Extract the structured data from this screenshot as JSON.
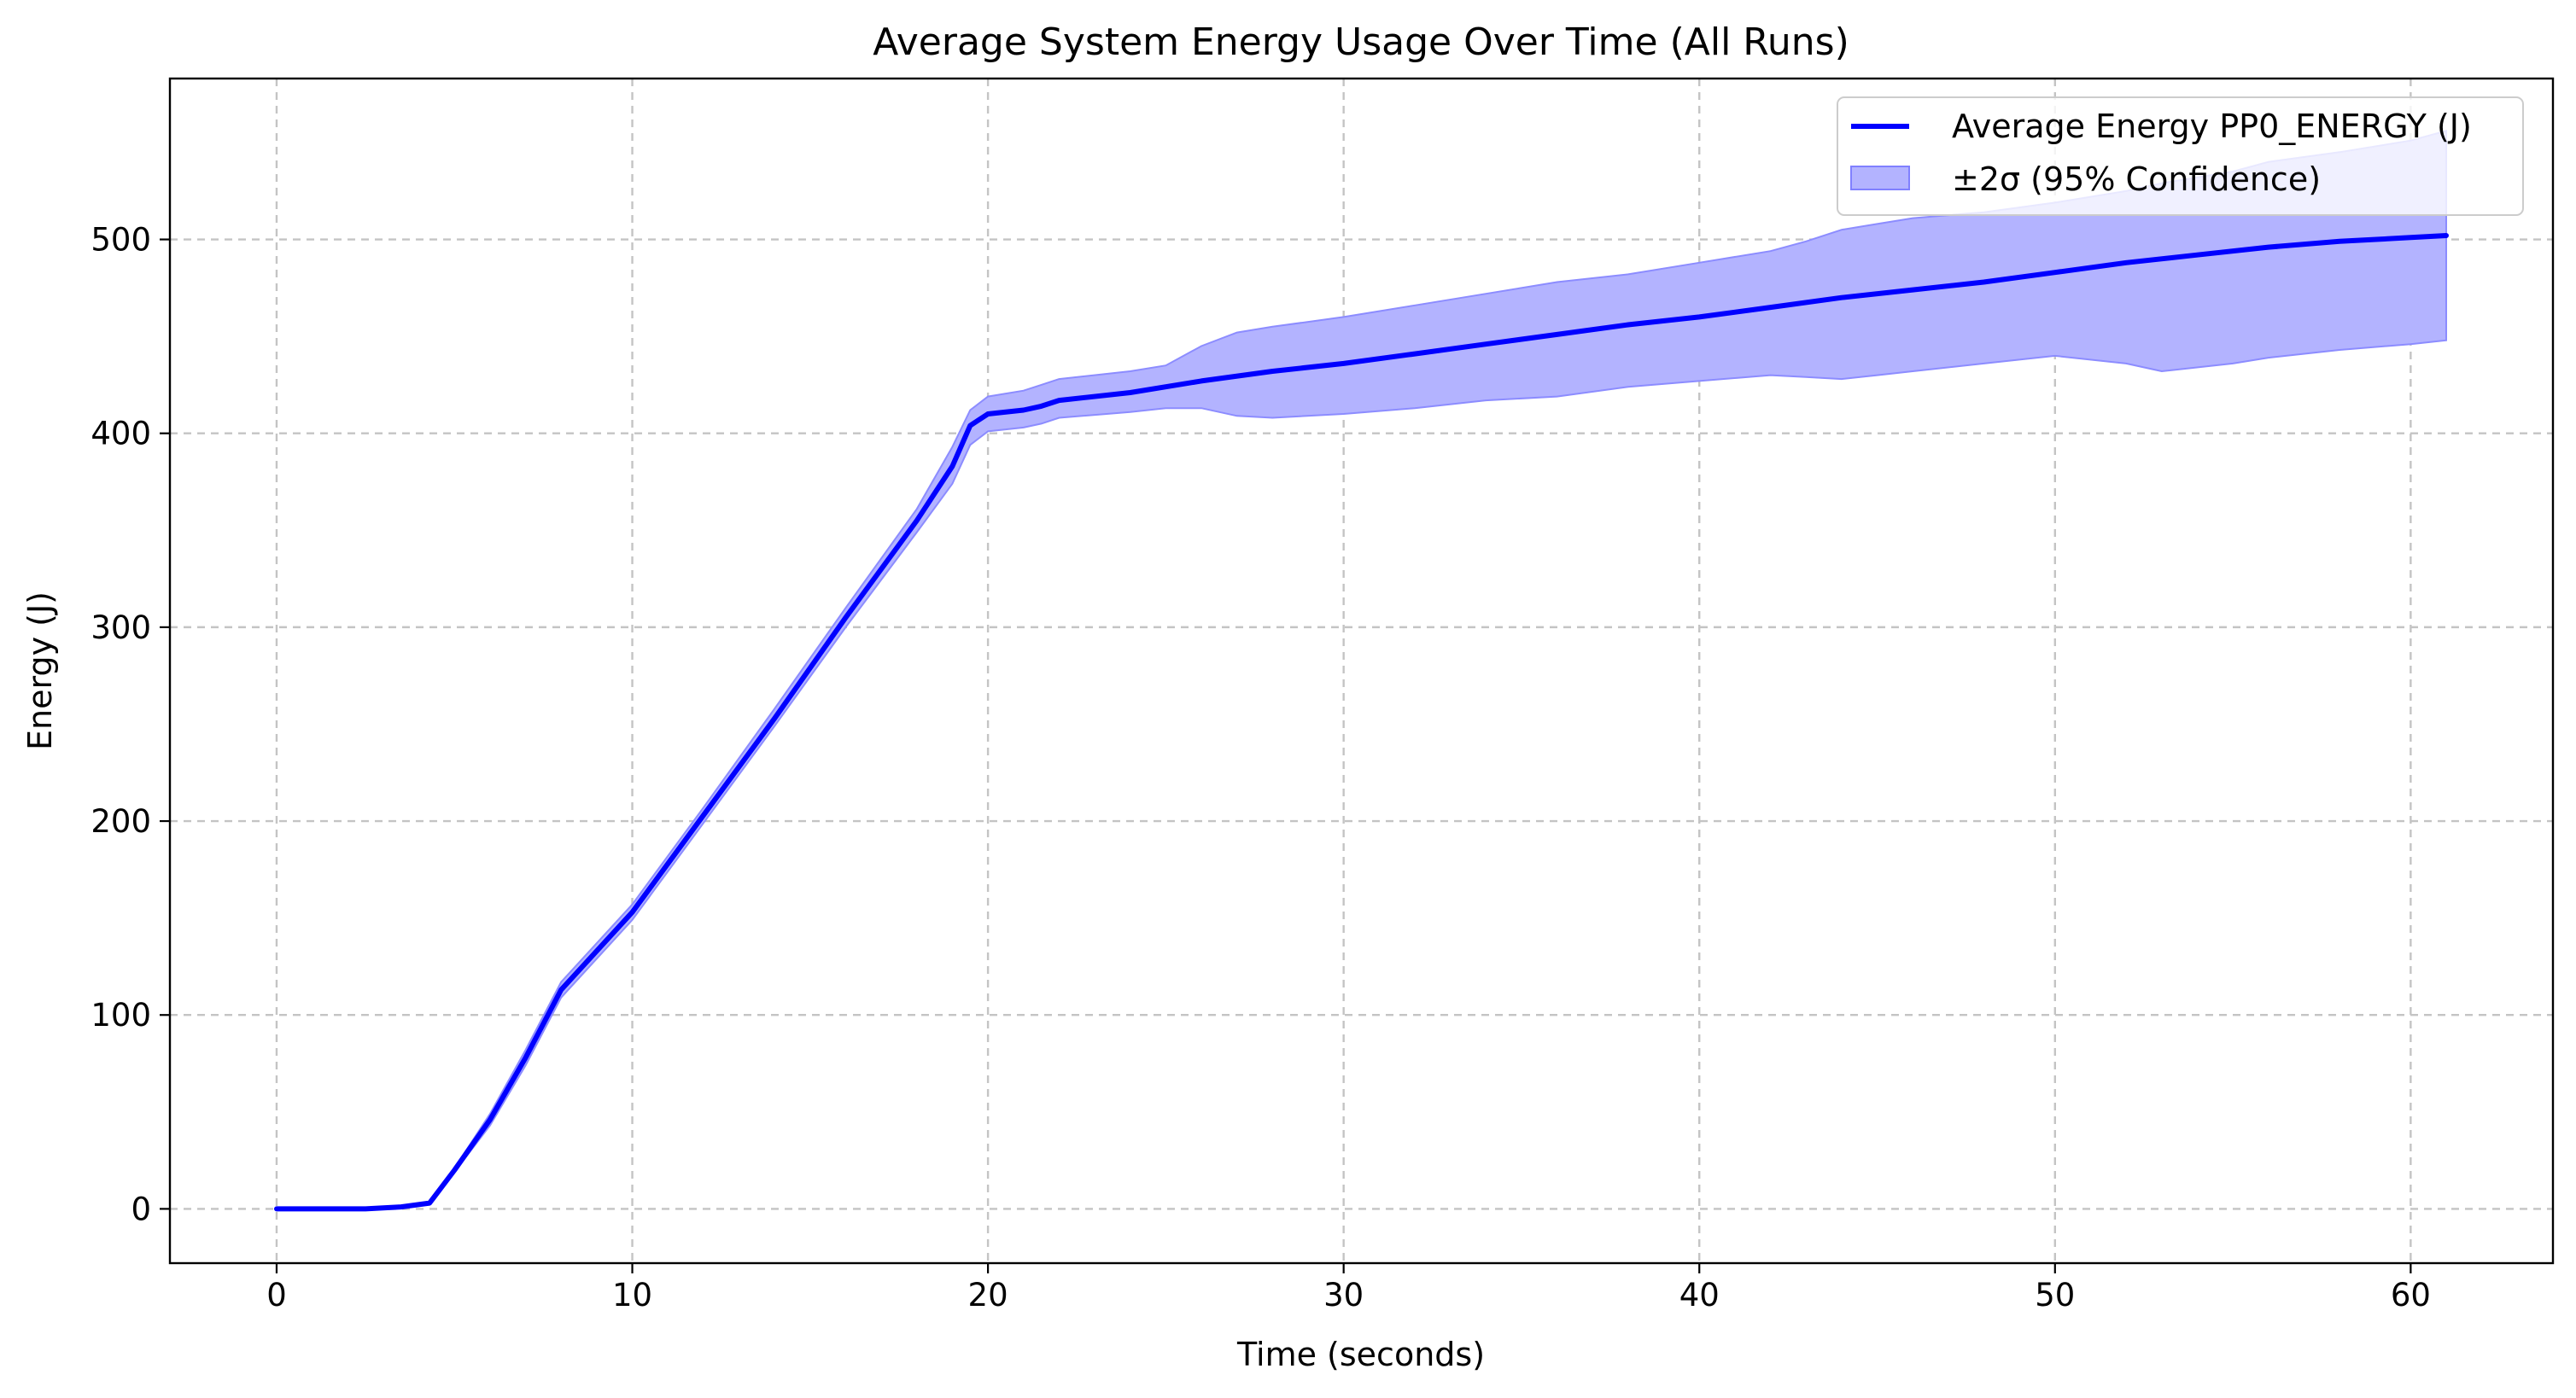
{
  "chart_data": {
    "type": "line",
    "title": "Average System Energy Usage Over Time (All Runs)",
    "xlabel": "Time (seconds)",
    "ylabel": "Energy (J)",
    "xlim": [
      -3,
      64
    ],
    "ylim": [
      -28,
      583
    ],
    "xticks": [
      0,
      10,
      20,
      30,
      40,
      50,
      60
    ],
    "yticks": [
      0,
      100,
      200,
      300,
      400,
      500
    ],
    "grid": true,
    "legend_position": "top-right",
    "series": [
      {
        "name": "Average Energy PP0_ENERGY (J)",
        "color": "#0000ff",
        "x": [
          0,
          2.5,
          3.5,
          4.3,
          5,
          6,
          7,
          8,
          10,
          12,
          14,
          16,
          18,
          19,
          19.5,
          20,
          21,
          21.5,
          22,
          24,
          26,
          28,
          30,
          32,
          34,
          36,
          38,
          40,
          42,
          44,
          46,
          48,
          50,
          52,
          54,
          56,
          58,
          60,
          61
        ],
        "y": [
          0,
          0,
          1,
          3,
          20,
          46,
          78,
          113,
          153,
          203,
          253,
          305,
          355,
          383,
          404,
          410,
          412,
          414,
          417,
          421,
          427,
          432,
          436,
          441,
          446,
          451,
          456,
          460,
          465,
          470,
          474,
          478,
          483,
          488,
          492,
          496,
          499,
          501,
          502
        ]
      },
      {
        "name": "±2σ (95% Confidence)",
        "type": "band",
        "color": "#0000ff",
        "fill_color": "#b3b3ff",
        "x": [
          0,
          2.5,
          3.5,
          4.3,
          5,
          6,
          7,
          8,
          10,
          12,
          14,
          16,
          18,
          19,
          19.5,
          20,
          21,
          21.5,
          22,
          24,
          25,
          26,
          27,
          28,
          30,
          32,
          34,
          36,
          38,
          40,
          42,
          43,
          44,
          45,
          46,
          48,
          50,
          52,
          53,
          55,
          56,
          58,
          60,
          61
        ],
        "upper": [
          0,
          0,
          1,
          3,
          21,
          49,
          82,
          117,
          157,
          207,
          258,
          310,
          361,
          393,
          412,
          419,
          422,
          425,
          428,
          432,
          435,
          445,
          452,
          455,
          460,
          466,
          472,
          478,
          482,
          488,
          494,
          499,
          505,
          508,
          511,
          514,
          519,
          525,
          529,
          535,
          540,
          545,
          551,
          556
        ],
        "lower": [
          0,
          0,
          1,
          3,
          19,
          43,
          74,
          109,
          149,
          199,
          249,
          300,
          349,
          374,
          394,
          401,
          403,
          405,
          408,
          411,
          413,
          413,
          409,
          408,
          410,
          413,
          417,
          419,
          424,
          427,
          430,
          429,
          428,
          430,
          432,
          436,
          440,
          436,
          432,
          436,
          439,
          443,
          446,
          448
        ]
      }
    ]
  }
}
